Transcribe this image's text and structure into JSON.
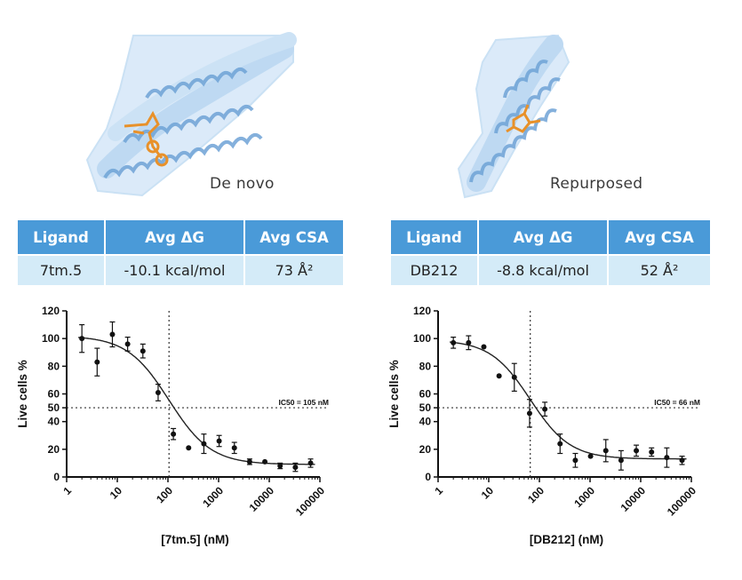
{
  "chart_data": [
    {
      "type": "scatter",
      "caption": "De novo",
      "table": {
        "headers": [
          "Ligand",
          "Avg ΔG",
          "Avg CSA"
        ],
        "values": [
          "7tm.5",
          "-10.1 kcal/mol",
          "73 Å²"
        ]
      },
      "xlabel": "[7tm.5] (nM)",
      "ylabel": "Live cells %",
      "x_scale": "log",
      "xlim": [
        1,
        100000
      ],
      "ylim": [
        0,
        120
      ],
      "x_ticks": [
        "1",
        "10",
        "100",
        "1000",
        "10000",
        "100000"
      ],
      "y_ticks": [
        "0",
        "20",
        "40",
        "50",
        "60",
        "80",
        "100",
        "120"
      ],
      "ic50_label": "IC50 = 105 nM",
      "ic50": 105,
      "points": [
        {
          "x": 2,
          "y": 100,
          "err": 10
        },
        {
          "x": 4,
          "y": 83,
          "err": 10
        },
        {
          "x": 8,
          "y": 103,
          "err": 9
        },
        {
          "x": 16,
          "y": 96,
          "err": 5
        },
        {
          "x": 32,
          "y": 91,
          "err": 5
        },
        {
          "x": 64,
          "y": 61,
          "err": 6
        },
        {
          "x": 128,
          "y": 31,
          "err": 4
        },
        {
          "x": 256,
          "y": 21,
          "err": 0
        },
        {
          "x": 512,
          "y": 24,
          "err": 7
        },
        {
          "x": 1024,
          "y": 26,
          "err": 4
        },
        {
          "x": 2048,
          "y": 21,
          "err": 4
        },
        {
          "x": 4096,
          "y": 11,
          "err": 2
        },
        {
          "x": 8192,
          "y": 11,
          "err": 0
        },
        {
          "x": 16384,
          "y": 8,
          "err": 2
        },
        {
          "x": 32768,
          "y": 7,
          "err": 3
        },
        {
          "x": 65536,
          "y": 10,
          "err": 3
        }
      ],
      "fit": {
        "top": 102,
        "bottom": 9,
        "hill": 1.05
      }
    },
    {
      "type": "scatter",
      "caption": "Repurposed",
      "table": {
        "headers": [
          "Ligand",
          "Avg ΔG",
          "Avg CSA"
        ],
        "values": [
          "DB212",
          "-8.8 kcal/mol",
          "52 Å²"
        ]
      },
      "xlabel": "[DB212] (nM)",
      "ylabel": "Live cells %",
      "x_scale": "log",
      "xlim": [
        1,
        100000
      ],
      "ylim": [
        0,
        120
      ],
      "x_ticks": [
        "1",
        "10",
        "100",
        "1000",
        "10000",
        "100000"
      ],
      "y_ticks": [
        "0",
        "20",
        "40",
        "50",
        "60",
        "80",
        "100",
        "120"
      ],
      "ic50_label": "IC50 = 66 nM",
      "ic50": 66,
      "points": [
        {
          "x": 2,
          "y": 97,
          "err": 4
        },
        {
          "x": 4,
          "y": 97,
          "err": 5
        },
        {
          "x": 8,
          "y": 94,
          "err": 0
        },
        {
          "x": 16,
          "y": 73,
          "err": 0
        },
        {
          "x": 32,
          "y": 72,
          "err": 10
        },
        {
          "x": 64,
          "y": 46,
          "err": 10
        },
        {
          "x": 128,
          "y": 49,
          "err": 5
        },
        {
          "x": 256,
          "y": 24,
          "err": 7
        },
        {
          "x": 512,
          "y": 12,
          "err": 5
        },
        {
          "x": 1024,
          "y": 15,
          "err": 0
        },
        {
          "x": 2048,
          "y": 19,
          "err": 8
        },
        {
          "x": 4096,
          "y": 12,
          "err": 7
        },
        {
          "x": 8192,
          "y": 19,
          "err": 4
        },
        {
          "x": 16384,
          "y": 18,
          "err": 3
        },
        {
          "x": 32768,
          "y": 14,
          "err": 7
        },
        {
          "x": 65536,
          "y": 12,
          "err": 3
        }
      ],
      "fit": {
        "top": 99,
        "bottom": 13,
        "hill": 1.1
      }
    }
  ],
  "colors": {
    "header_bg": "#4a9ad8",
    "cell_bg": "#d4ebf8",
    "protein": "#b4d6f2",
    "helix": "#7aaedc",
    "ligand": "#e8912a"
  },
  "icons": [
    "protein-structure-icon",
    "ligand-icon"
  ]
}
